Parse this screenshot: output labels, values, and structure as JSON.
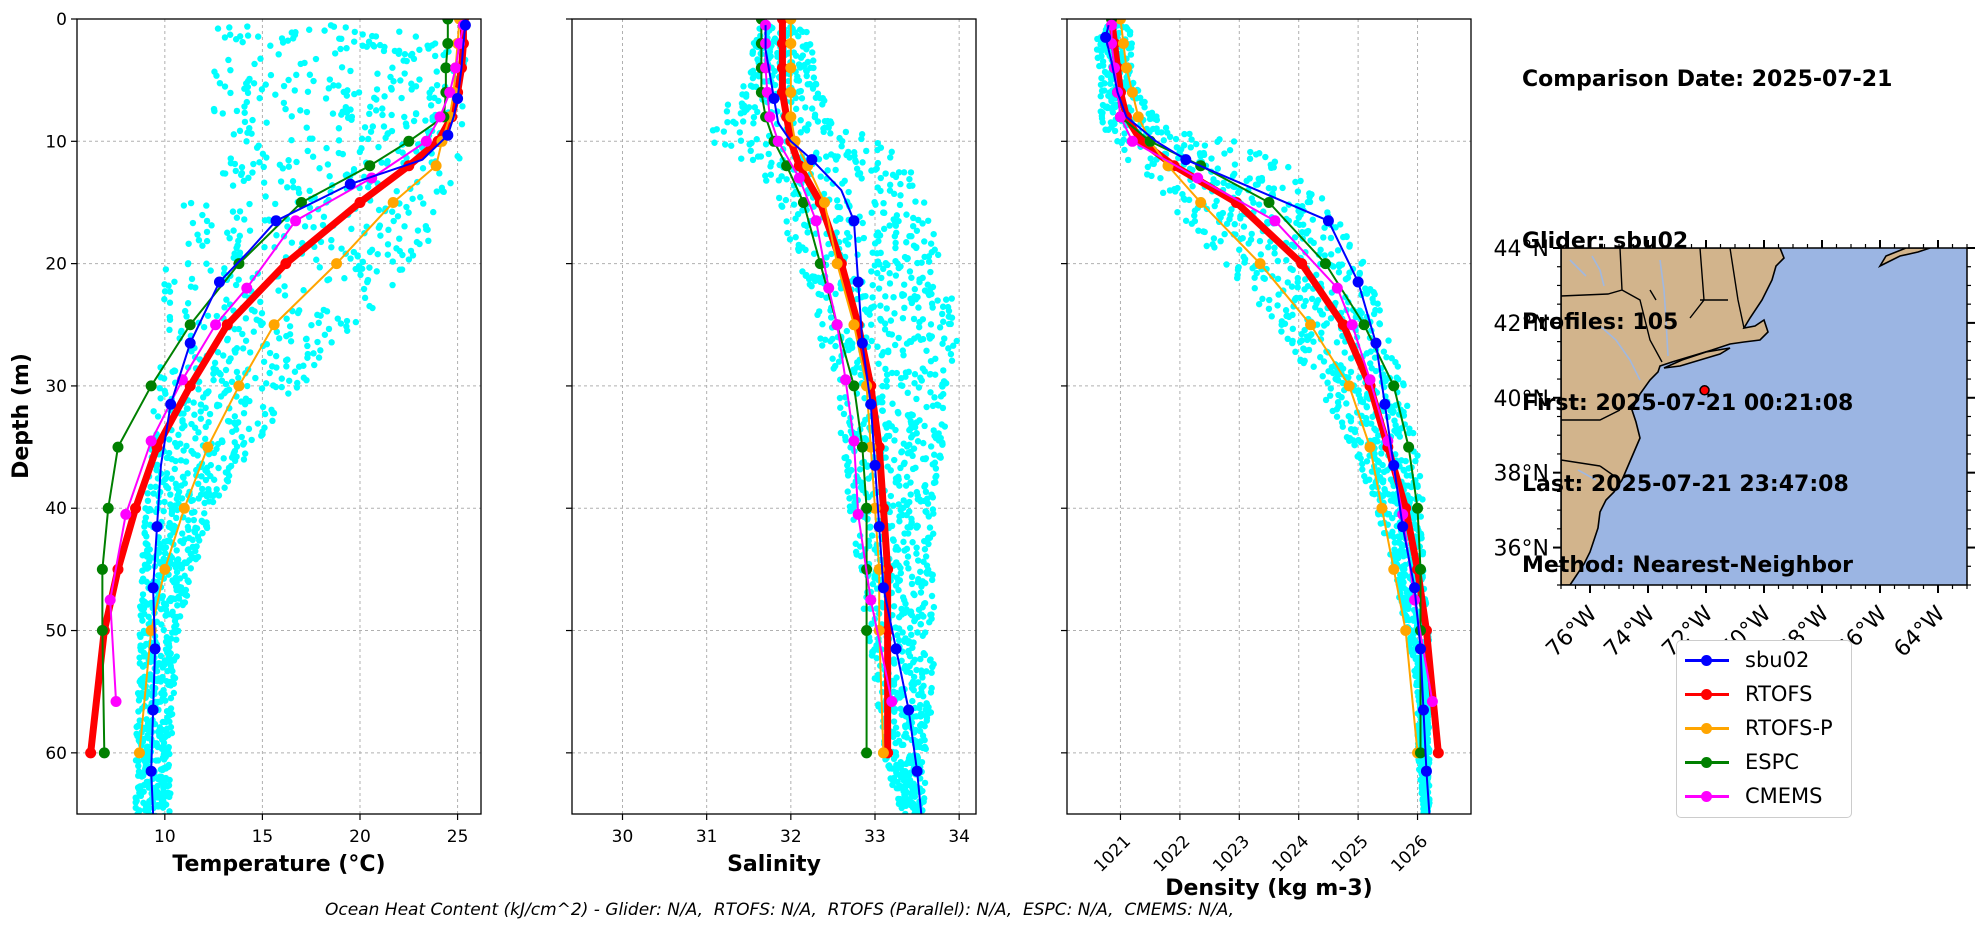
{
  "info": {
    "comparison_date": "Comparison Date: 2025-07-21",
    "glider": "Glider: sbu02",
    "profiles": "Profiles: 105",
    "first": "First: 2025-07-21 00:21:08",
    "last": "Last: 2025-07-21 23:47:08",
    "method": "Method: Nearest-Neighbor"
  },
  "footer": "Ocean Heat Content (kJ/cm^2) - Glider: N/A,  RTOFS: N/A,  RTOFS (Parallel): N/A,  ESPC: N/A,  CMEMS: N/A,",
  "colors": {
    "sbu02": "#0000ff",
    "RTOFS": "#ff0000",
    "RTOFS-P": "#ffa500",
    "ESPC": "#008000",
    "CMEMS": "#ff00ff",
    "glider_scatter": "#00ffff",
    "land": "#d2b48c",
    "ocean": "#9bb5e3"
  },
  "legend": [
    {
      "name": "sbu02",
      "color": "#0000ff"
    },
    {
      "name": "RTOFS",
      "color": "#ff0000"
    },
    {
      "name": "RTOFS-P",
      "color": "#ffa500"
    },
    {
      "name": "ESPC",
      "color": "#008000"
    },
    {
      "name": "CMEMS",
      "color": "#ff00ff"
    }
  ],
  "chart_data": [
    {
      "type": "line",
      "xlabel": "Temperature (°C)",
      "ylabel": "Depth (m)",
      "xlim": [
        5.5,
        26.2
      ],
      "ylim": [
        65,
        0
      ],
      "xticks": [
        10,
        15,
        20,
        25
      ],
      "yticks": [
        0,
        10,
        20,
        30,
        40,
        50,
        60
      ],
      "grid": true,
      "scatter_envelope": {
        "depth": [
          9,
          10,
          12,
          15,
          20,
          25,
          30,
          35,
          40,
          45,
          50,
          55,
          60
        ],
        "min": [
          12.5,
          14,
          13,
          11,
          10,
          9.8,
          9.5,
          9.3,
          9,
          8.8,
          8.7,
          8.6,
          8.5
        ],
        "max": [
          25.5,
          25.5,
          25,
          24.5,
          23,
          20,
          17,
          14.5,
          12.5,
          11.5,
          10.7,
          10.5,
          10.3
        ]
      },
      "series": [
        {
          "name": "sbu02",
          "width": 2,
          "depth": [
            0.5,
            2,
            4,
            6.5,
            8,
            9.5,
            11.5,
            13.5,
            16.5,
            19,
            21.5,
            26.5,
            31.5,
            36.5,
            41.5,
            46.5,
            51.5,
            56.5,
            61.5,
            65
          ],
          "values": [
            25.4,
            25.3,
            25.2,
            25.0,
            24.8,
            24.5,
            23.2,
            19.5,
            15.7,
            14.3,
            12.8,
            11.3,
            10.3,
            9.8,
            9.6,
            9.4,
            9.5,
            9.4,
            9.3,
            9.4
          ],
          "markers": [
            0,
            3,
            5,
            7,
            8,
            10,
            11,
            12,
            14,
            15,
            16,
            17,
            18
          ]
        },
        {
          "name": "RTOFS",
          "width": 7,
          "depth": [
            0,
            2,
            4,
            6,
            8,
            10,
            12,
            15,
            20,
            25,
            30,
            35,
            40,
            45,
            50,
            60
          ],
          "values": [
            25.3,
            25.3,
            25.2,
            25.0,
            24.7,
            24.0,
            22.5,
            20.0,
            16.2,
            13.2,
            11.3,
            9.6,
            8.5,
            7.6,
            6.9,
            6.2
          ]
        },
        {
          "name": "RTOFS-P",
          "width": 2,
          "depth": [
            0,
            2,
            4,
            6,
            8,
            10,
            12,
            15,
            20,
            25,
            30,
            35,
            40,
            45,
            50,
            60
          ],
          "values": [
            25.1,
            25.0,
            24.9,
            24.8,
            24.6,
            24.2,
            23.9,
            21.7,
            18.8,
            15.6,
            13.8,
            12.2,
            11.0,
            10.0,
            9.3,
            8.7
          ]
        },
        {
          "name": "ESPC",
          "width": 2,
          "depth": [
            0,
            2,
            4,
            6,
            8,
            10,
            12,
            15,
            20,
            25,
            30,
            35,
            40,
            45,
            50,
            60
          ],
          "values": [
            24.5,
            24.5,
            24.4,
            24.4,
            24.3,
            22.5,
            20.5,
            17.0,
            13.8,
            11.3,
            9.3,
            7.6,
            7.1,
            6.8,
            6.8,
            6.9
          ]
        },
        {
          "name": "CMEMS",
          "width": 2,
          "depth": [
            0.5,
            2,
            4,
            6,
            8,
            10,
            13,
            16.5,
            22,
            25,
            29.5,
            34.5,
            40.5,
            47.5,
            55.8
          ],
          "values": [
            25.3,
            25.1,
            24.9,
            24.6,
            24.1,
            23.4,
            20.6,
            16.7,
            14.2,
            12.6,
            10.9,
            9.3,
            8.0,
            7.2,
            7.5
          ]
        }
      ]
    },
    {
      "type": "line",
      "xlabel": "Salinity",
      "xlim": [
        29.4,
        34.2
      ],
      "ylim": [
        65,
        0
      ],
      "xticks": [
        30,
        31,
        32,
        33,
        34
      ],
      "grid": true,
      "scatter_envelope": {
        "depth": [
          0,
          5,
          9,
          10,
          12,
          15,
          20,
          25,
          30,
          35,
          40,
          45,
          50,
          55,
          60,
          65
        ],
        "min": [
          31.6,
          31.5,
          31.0,
          30.9,
          31.6,
          31.8,
          32.1,
          32.3,
          32.5,
          32.6,
          32.7,
          32.8,
          32.9,
          33.0,
          33.1,
          33.3
        ],
        "max": [
          32.2,
          32.3,
          32.6,
          33.2,
          33.4,
          33.6,
          33.8,
          34.0,
          33.9,
          33.8,
          33.7,
          33.7,
          33.7,
          33.7,
          33.6,
          33.6
        ]
      },
      "series": [
        {
          "name": "sbu02",
          "width": 2,
          "depth": [
            0.5,
            2.5,
            4.5,
            6.5,
            8.5,
            10,
            11.5,
            14,
            16.5,
            21.5,
            26.5,
            31.5,
            36.5,
            41.5,
            46.5,
            51.5,
            56.5,
            61.5,
            65
          ],
          "values": [
            31.7,
            31.7,
            31.75,
            31.8,
            31.85,
            32.0,
            32.25,
            32.6,
            32.75,
            32.8,
            32.85,
            32.95,
            33.0,
            33.05,
            33.1,
            33.25,
            33.4,
            33.5,
            33.55
          ],
          "markers": [
            3,
            6,
            8,
            9,
            10,
            11,
            12,
            13,
            14,
            15,
            16,
            17
          ]
        },
        {
          "name": "RTOFS",
          "width": 7,
          "depth": [
            0,
            2,
            4,
            6,
            8,
            10,
            12,
            15,
            20,
            25,
            30,
            35,
            40,
            45,
            50,
            60
          ],
          "values": [
            31.9,
            31.9,
            31.9,
            31.9,
            31.95,
            32.0,
            32.1,
            32.35,
            32.6,
            32.8,
            32.95,
            33.05,
            33.1,
            33.15,
            33.15,
            33.15
          ]
        },
        {
          "name": "RTOFS-P",
          "width": 2,
          "depth": [
            0,
            2,
            4,
            6,
            8,
            10,
            12,
            15,
            20,
            25,
            30,
            35,
            40,
            45,
            50,
            60
          ],
          "values": [
            32.0,
            32.0,
            32.0,
            32.0,
            32.0,
            32.05,
            32.2,
            32.4,
            32.55,
            32.75,
            32.9,
            32.95,
            33.0,
            33.05,
            33.05,
            33.1
          ]
        },
        {
          "name": "ESPC",
          "width": 2,
          "depth": [
            0,
            2,
            4,
            6,
            8,
            10,
            12,
            15,
            20,
            25,
            30,
            35,
            40,
            45,
            50,
            60
          ],
          "values": [
            31.65,
            31.65,
            31.65,
            31.65,
            31.7,
            31.8,
            31.95,
            32.15,
            32.35,
            32.55,
            32.75,
            32.85,
            32.9,
            32.9,
            32.9,
            32.9
          ]
        },
        {
          "name": "CMEMS",
          "width": 2,
          "depth": [
            0.5,
            2,
            4,
            6,
            8,
            10,
            13,
            16.5,
            22,
            25,
            29.5,
            34.5,
            40.5,
            47.5,
            55.8
          ],
          "values": [
            31.7,
            31.7,
            31.7,
            31.72,
            31.75,
            31.85,
            32.1,
            32.3,
            32.45,
            32.55,
            32.65,
            32.75,
            32.8,
            32.95,
            33.2
          ]
        }
      ]
    },
    {
      "type": "line",
      "xlabel": "Density (kg m-3)",
      "xlim": [
        1020.1,
        1026.9
      ],
      "ylim": [
        65,
        0
      ],
      "xticks": [
        1021,
        1022,
        1023,
        1024,
        1025,
        1026
      ],
      "grid": true,
      "scatter_envelope": {
        "depth": [
          0,
          5,
          9,
          10,
          12,
          15,
          20,
          25,
          30,
          35,
          40,
          45,
          50,
          55,
          60,
          65
        ],
        "min": [
          20.6,
          20.6,
          20.7,
          20.8,
          21.2,
          21.8,
          22.7,
          23.6,
          24.3,
          24.9,
          25.3,
          25.6,
          25.8,
          26.0,
          26.0,
          26.1
        ],
        "max": [
          21.2,
          21.2,
          21.8,
          23.0,
          23.8,
          24.5,
          25.1,
          25.5,
          25.8,
          26.0,
          26.1,
          26.1,
          26.2,
          26.2,
          26.2,
          26.2
        ]
      },
      "series": [
        {
          "name": "sbu02",
          "width": 2,
          "depth": [
            0.5,
            1.5,
            3.5,
            6,
            8,
            10,
            11.5,
            14,
            16.5,
            21.5,
            26.5,
            31.5,
            36.5,
            41.5,
            46.5,
            51.5,
            56.5,
            61.5,
            65
          ],
          "values": [
            20.8,
            20.75,
            20.85,
            20.95,
            21.1,
            21.6,
            22.1,
            23.3,
            24.5,
            25.0,
            25.3,
            25.45,
            25.6,
            25.75,
            25.95,
            26.05,
            26.1,
            26.15,
            26.2
          ],
          "markers": [
            1,
            6,
            8,
            9,
            10,
            11,
            12,
            13,
            14,
            15,
            16,
            17
          ]
        },
        {
          "name": "RTOFS",
          "width": 7,
          "depth": [
            0,
            2,
            4,
            6,
            8,
            10,
            12,
            15,
            20,
            25,
            30,
            35,
            40,
            45,
            50,
            60
          ],
          "values": [
            20.85,
            20.9,
            20.95,
            21.0,
            21.1,
            21.35,
            21.9,
            22.95,
            24.05,
            24.75,
            25.2,
            25.5,
            25.8,
            26.0,
            26.15,
            26.35
          ]
        },
        {
          "name": "RTOFS-P",
          "width": 2,
          "depth": [
            0,
            2,
            4,
            6,
            8,
            10,
            12,
            15,
            20,
            25,
            30,
            35,
            40,
            45,
            50,
            60
          ],
          "values": [
            21.0,
            21.05,
            21.1,
            21.2,
            21.3,
            21.5,
            21.8,
            22.35,
            23.35,
            24.2,
            24.85,
            25.2,
            25.4,
            25.6,
            25.8,
            26.0
          ]
        },
        {
          "name": "ESPC",
          "width": 2,
          "depth": [
            0,
            2,
            4,
            6,
            8,
            10,
            12,
            15,
            20,
            25,
            30,
            35,
            40,
            45,
            50,
            60
          ],
          "values": [
            20.85,
            20.85,
            20.9,
            20.95,
            21.0,
            21.5,
            22.35,
            23.5,
            24.45,
            25.1,
            25.6,
            25.85,
            26.0,
            26.05,
            26.05,
            26.05
          ]
        },
        {
          "name": "CMEMS",
          "width": 2,
          "depth": [
            0.5,
            2,
            4,
            6,
            8,
            10,
            13,
            16.5,
            22,
            25,
            29.5,
            34.5,
            40.5,
            47.5,
            55.8
          ],
          "values": [
            20.85,
            20.85,
            20.9,
            20.95,
            21.0,
            21.2,
            22.3,
            23.6,
            24.65,
            24.9,
            25.2,
            25.5,
            25.75,
            25.95,
            26.25
          ]
        }
      ]
    },
    {
      "type": "map",
      "lon_range": [
        -77,
        -63
      ],
      "lat_range": [
        35,
        44
      ],
      "lon_ticks": [
        "76°W",
        "74°W",
        "72°W",
        "70°W",
        "68°W",
        "66°W",
        "64°W"
      ],
      "lat_ticks": [
        "44°N",
        "42°N",
        "40°N",
        "38°N",
        "36°N"
      ],
      "glider_position": {
        "lon": -72.05,
        "lat": 40.2
      }
    }
  ]
}
